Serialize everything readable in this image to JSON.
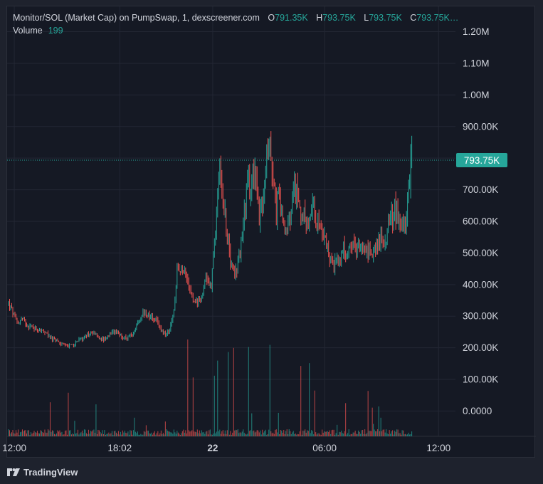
{
  "legend": {
    "symbol": "Monitor/SOL (Market Cap) on PumpSwap, 1, dexscreener.com",
    "open_label": "O",
    "open": "791.35K",
    "high_label": "H",
    "high": "793.75K",
    "low_label": "L",
    "low": "793.75K",
    "close_label": "C",
    "close": "793.75K…",
    "volume_label": "Volume",
    "volume": "199"
  },
  "footer": {
    "brand": "TradingView"
  },
  "colors": {
    "up": "#26a69a",
    "down": "#ef5350",
    "background": "#151924",
    "grid": "#232734",
    "text": "#d1d4dc",
    "price_line": "#26a69a"
  },
  "chart_data": {
    "type": "candlestick",
    "y_ticks": [
      {
        "value": 1200000,
        "label": "1.20M"
      },
      {
        "value": 1100000,
        "label": "1.10M"
      },
      {
        "value": 1000000,
        "label": "1.00M"
      },
      {
        "value": 900000,
        "label": "900.00K"
      },
      {
        "value": 800000,
        "label": ""
      },
      {
        "value": 700000,
        "label": "700.00K"
      },
      {
        "value": 600000,
        "label": "600.00K"
      },
      {
        "value": 500000,
        "label": "500.00K"
      },
      {
        "value": 400000,
        "label": "400.00K"
      },
      {
        "value": 300000,
        "label": "300.00K"
      },
      {
        "value": 200000,
        "label": "200.00K"
      },
      {
        "value": 100000,
        "label": "100.00K"
      },
      {
        "value": 0,
        "label": "0.0000"
      }
    ],
    "ylim": [
      -80000,
      1280000
    ],
    "x_ticks": [
      {
        "t": 0.0133,
        "label": "12:00",
        "bold": false
      },
      {
        "t": 0.2578,
        "label": "18:02",
        "bold": false
      },
      {
        "t": 0.4735,
        "label": "22",
        "bold": true
      },
      {
        "t": 0.7329,
        "label": "06:00",
        "bold": false
      },
      {
        "t": 0.9971,
        "label": "12:00",
        "bold": false
      }
    ],
    "current_price": {
      "value": 793750,
      "label": "793.75K"
    },
    "series": [
      {
        "t": 0.0,
        "v": 340000
      },
      {
        "t": 0.01,
        "v": 310000
      },
      {
        "t": 0.02,
        "v": 280000
      },
      {
        "t": 0.03,
        "v": 290000
      },
      {
        "t": 0.045,
        "v": 270000
      },
      {
        "t": 0.06,
        "v": 265000
      },
      {
        "t": 0.075,
        "v": 255000
      },
      {
        "t": 0.09,
        "v": 240000
      },
      {
        "t": 0.105,
        "v": 225000
      },
      {
        "t": 0.12,
        "v": 215000
      },
      {
        "t": 0.135,
        "v": 205000
      },
      {
        "t": 0.15,
        "v": 210000
      },
      {
        "t": 0.165,
        "v": 225000
      },
      {
        "t": 0.18,
        "v": 240000
      },
      {
        "t": 0.195,
        "v": 250000
      },
      {
        "t": 0.21,
        "v": 230000
      },
      {
        "t": 0.225,
        "v": 225000
      },
      {
        "t": 0.24,
        "v": 245000
      },
      {
        "t": 0.255,
        "v": 245000
      },
      {
        "t": 0.27,
        "v": 230000
      },
      {
        "t": 0.285,
        "v": 240000
      },
      {
        "t": 0.295,
        "v": 265000
      },
      {
        "t": 0.31,
        "v": 310000
      },
      {
        "t": 0.325,
        "v": 305000
      },
      {
        "t": 0.34,
        "v": 290000
      },
      {
        "t": 0.355,
        "v": 255000
      },
      {
        "t": 0.365,
        "v": 240000
      },
      {
        "t": 0.375,
        "v": 260000
      },
      {
        "t": 0.385,
        "v": 330000
      },
      {
        "t": 0.39,
        "v": 450000
      },
      {
        "t": 0.4,
        "v": 440000
      },
      {
        "t": 0.41,
        "v": 430000
      },
      {
        "t": 0.42,
        "v": 400000
      },
      {
        "t": 0.43,
        "v": 350000
      },
      {
        "t": 0.44,
        "v": 340000
      },
      {
        "t": 0.45,
        "v": 380000
      },
      {
        "t": 0.46,
        "v": 420000
      },
      {
        "t": 0.47,
        "v": 400000
      },
      {
        "t": 0.48,
        "v": 560000
      },
      {
        "t": 0.485,
        "v": 710000
      },
      {
        "t": 0.49,
        "v": 780000
      },
      {
        "t": 0.495,
        "v": 680000
      },
      {
        "t": 0.505,
        "v": 600000
      },
      {
        "t": 0.515,
        "v": 480000
      },
      {
        "t": 0.525,
        "v": 430000
      },
      {
        "t": 0.535,
        "v": 480000
      },
      {
        "t": 0.545,
        "v": 620000
      },
      {
        "t": 0.555,
        "v": 740000
      },
      {
        "t": 0.56,
        "v": 680000
      },
      {
        "t": 0.57,
        "v": 760000
      },
      {
        "t": 0.58,
        "v": 620000
      },
      {
        "t": 0.59,
        "v": 640000
      },
      {
        "t": 0.6,
        "v": 830000
      },
      {
        "t": 0.605,
        "v": 860000
      },
      {
        "t": 0.61,
        "v": 790000
      },
      {
        "t": 0.62,
        "v": 620000
      },
      {
        "t": 0.625,
        "v": 690000
      },
      {
        "t": 0.635,
        "v": 610000
      },
      {
        "t": 0.645,
        "v": 560000
      },
      {
        "t": 0.655,
        "v": 620000
      },
      {
        "t": 0.665,
        "v": 700000
      },
      {
        "t": 0.675,
        "v": 660000
      },
      {
        "t": 0.685,
        "v": 610000
      },
      {
        "t": 0.695,
        "v": 590000
      },
      {
        "t": 0.705,
        "v": 640000
      },
      {
        "t": 0.715,
        "v": 600000
      },
      {
        "t": 0.725,
        "v": 580000
      },
      {
        "t": 0.735,
        "v": 530000
      },
      {
        "t": 0.745,
        "v": 490000
      },
      {
        "t": 0.755,
        "v": 460000
      },
      {
        "t": 0.765,
        "v": 480000
      },
      {
        "t": 0.775,
        "v": 510000
      },
      {
        "t": 0.785,
        "v": 490000
      },
      {
        "t": 0.795,
        "v": 520000
      },
      {
        "t": 0.805,
        "v": 510000
      },
      {
        "t": 0.815,
        "v": 530000
      },
      {
        "t": 0.825,
        "v": 515000
      },
      {
        "t": 0.835,
        "v": 500000
      },
      {
        "t": 0.845,
        "v": 510000
      },
      {
        "t": 0.855,
        "v": 530000
      },
      {
        "t": 0.865,
        "v": 545000
      },
      {
        "t": 0.875,
        "v": 560000
      },
      {
        "t": 0.885,
        "v": 590000
      },
      {
        "t": 0.895,
        "v": 640000
      },
      {
        "t": 0.905,
        "v": 610000
      },
      {
        "t": 0.915,
        "v": 580000
      },
      {
        "t": 0.925,
        "v": 640000
      },
      {
        "t": 0.93,
        "v": 740000
      },
      {
        "t": 0.935,
        "v": 793750
      }
    ]
  }
}
